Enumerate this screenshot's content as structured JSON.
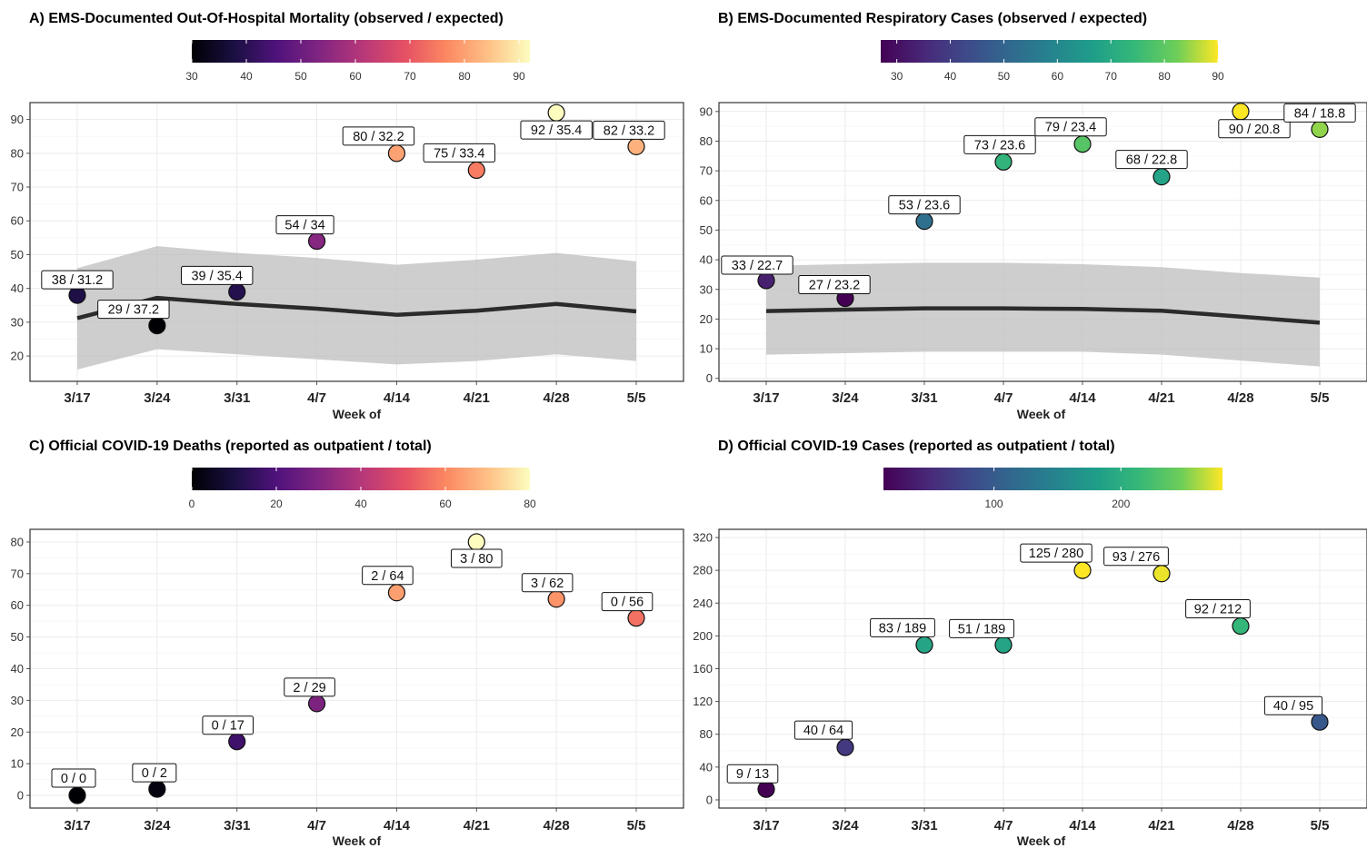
{
  "chart_data": [
    {
      "panel": "A",
      "type": "scatter",
      "title": "A) EMS-Documented Out-Of-Hospital Mortality (observed / expected)",
      "xlabel": "Week of",
      "categories": [
        "3/17",
        "3/24",
        "3/31",
        "4/7",
        "4/14",
        "4/21",
        "4/28",
        "5/5"
      ],
      "observed": [
        38,
        29,
        39,
        54,
        80,
        75,
        92,
        82
      ],
      "expected": [
        31.2,
        37.2,
        35.4,
        34,
        32.2,
        33.4,
        35.4,
        33.2
      ],
      "labels": [
        "38 / 31.2",
        "29 / 37.2",
        "39 / 35.4",
        "54 / 34",
        "80 / 32.2",
        "75 / 33.4",
        "92 / 35.4",
        "82 / 33.2"
      ],
      "band_lower": [
        16,
        22,
        20.5,
        19,
        17.5,
        18.5,
        20.5,
        18.5
      ],
      "band_upper": [
        46,
        52.5,
        50.5,
        49,
        47,
        48.5,
        50.5,
        48
      ],
      "ylim": [
        12.5,
        95
      ],
      "yticks": [
        20,
        30,
        40,
        50,
        60,
        70,
        80,
        90
      ],
      "colorbar": {
        "palette": "magma",
        "min": 30,
        "max": 92,
        "ticks": [
          30,
          40,
          50,
          60,
          70,
          80,
          90
        ]
      },
      "band": true,
      "grid": true
    },
    {
      "panel": "B",
      "type": "scatter",
      "title": "B) EMS-Documented Respiratory Cases (observed / expected)",
      "xlabel": "Week of",
      "categories": [
        "3/17",
        "3/24",
        "3/31",
        "4/7",
        "4/14",
        "4/21",
        "4/28",
        "5/5"
      ],
      "observed": [
        33,
        27,
        53,
        73,
        79,
        68,
        90,
        84
      ],
      "expected": [
        22.7,
        23.2,
        23.6,
        23.6,
        23.4,
        22.8,
        20.8,
        18.8
      ],
      "labels": [
        "33 / 22.7",
        "27 / 23.2",
        "53 / 23.6",
        "73 / 23.6",
        "79 / 23.4",
        "68 / 22.8",
        "90 / 20.8",
        "84 / 18.8"
      ],
      "band_lower": [
        8,
        8.5,
        9,
        9,
        9,
        8,
        6,
        4
      ],
      "band_upper": [
        38,
        38.5,
        39,
        39,
        38.5,
        37.5,
        35.5,
        34
      ],
      "ylim": [
        -1,
        93
      ],
      "yticks": [
        0,
        10,
        20,
        30,
        40,
        50,
        60,
        70,
        80,
        90
      ],
      "colorbar": {
        "palette": "viridis",
        "min": 27,
        "max": 90,
        "ticks": [
          30,
          40,
          50,
          60,
          70,
          80,
          90
        ]
      },
      "band": true,
      "grid": true
    },
    {
      "panel": "C",
      "type": "scatter",
      "title": "C) Official COVID-19 Deaths (reported as outpatient / total)",
      "xlabel": "Week of",
      "categories": [
        "3/17",
        "3/24",
        "3/31",
        "4/7",
        "4/14",
        "4/21",
        "4/28",
        "5/5"
      ],
      "observed": [
        0,
        2,
        17,
        29,
        64,
        80,
        62,
        56
      ],
      "labels": [
        "0 / 0",
        "0 / 2",
        "0 / 17",
        "2 / 29",
        "2 / 64",
        "3 / 80",
        "3 / 62",
        "0 / 56"
      ],
      "ylim": [
        -4,
        84
      ],
      "yticks": [
        0,
        10,
        20,
        30,
        40,
        50,
        60,
        70,
        80
      ],
      "colorbar": {
        "palette": "magma",
        "min": 0,
        "max": 80,
        "ticks": [
          0,
          20,
          40,
          60,
          80
        ]
      },
      "band": false,
      "grid": true
    },
    {
      "panel": "D",
      "type": "scatter",
      "title": "D) Official COVID-19 Cases (reported as outpatient / total)",
      "xlabel": "Week of",
      "categories": [
        "3/17",
        "3/24",
        "3/31",
        "4/7",
        "4/14",
        "4/21",
        "4/28",
        "5/5"
      ],
      "observed": [
        13,
        64,
        189,
        189,
        280,
        276,
        212,
        95
      ],
      "labels": [
        "9 / 13",
        "40 / 64",
        "83 / 189",
        "51 / 189",
        "125 / 280",
        "93 / 276",
        "92 / 212",
        "40 / 95"
      ],
      "ylim": [
        -10,
        330
      ],
      "yticks": [
        0,
        40,
        80,
        120,
        160,
        200,
        240,
        280,
        320
      ],
      "colorbar": {
        "palette": "viridis",
        "min": 13,
        "max": 280,
        "ticks": [
          100,
          200
        ]
      },
      "band": false,
      "grid": true
    }
  ]
}
